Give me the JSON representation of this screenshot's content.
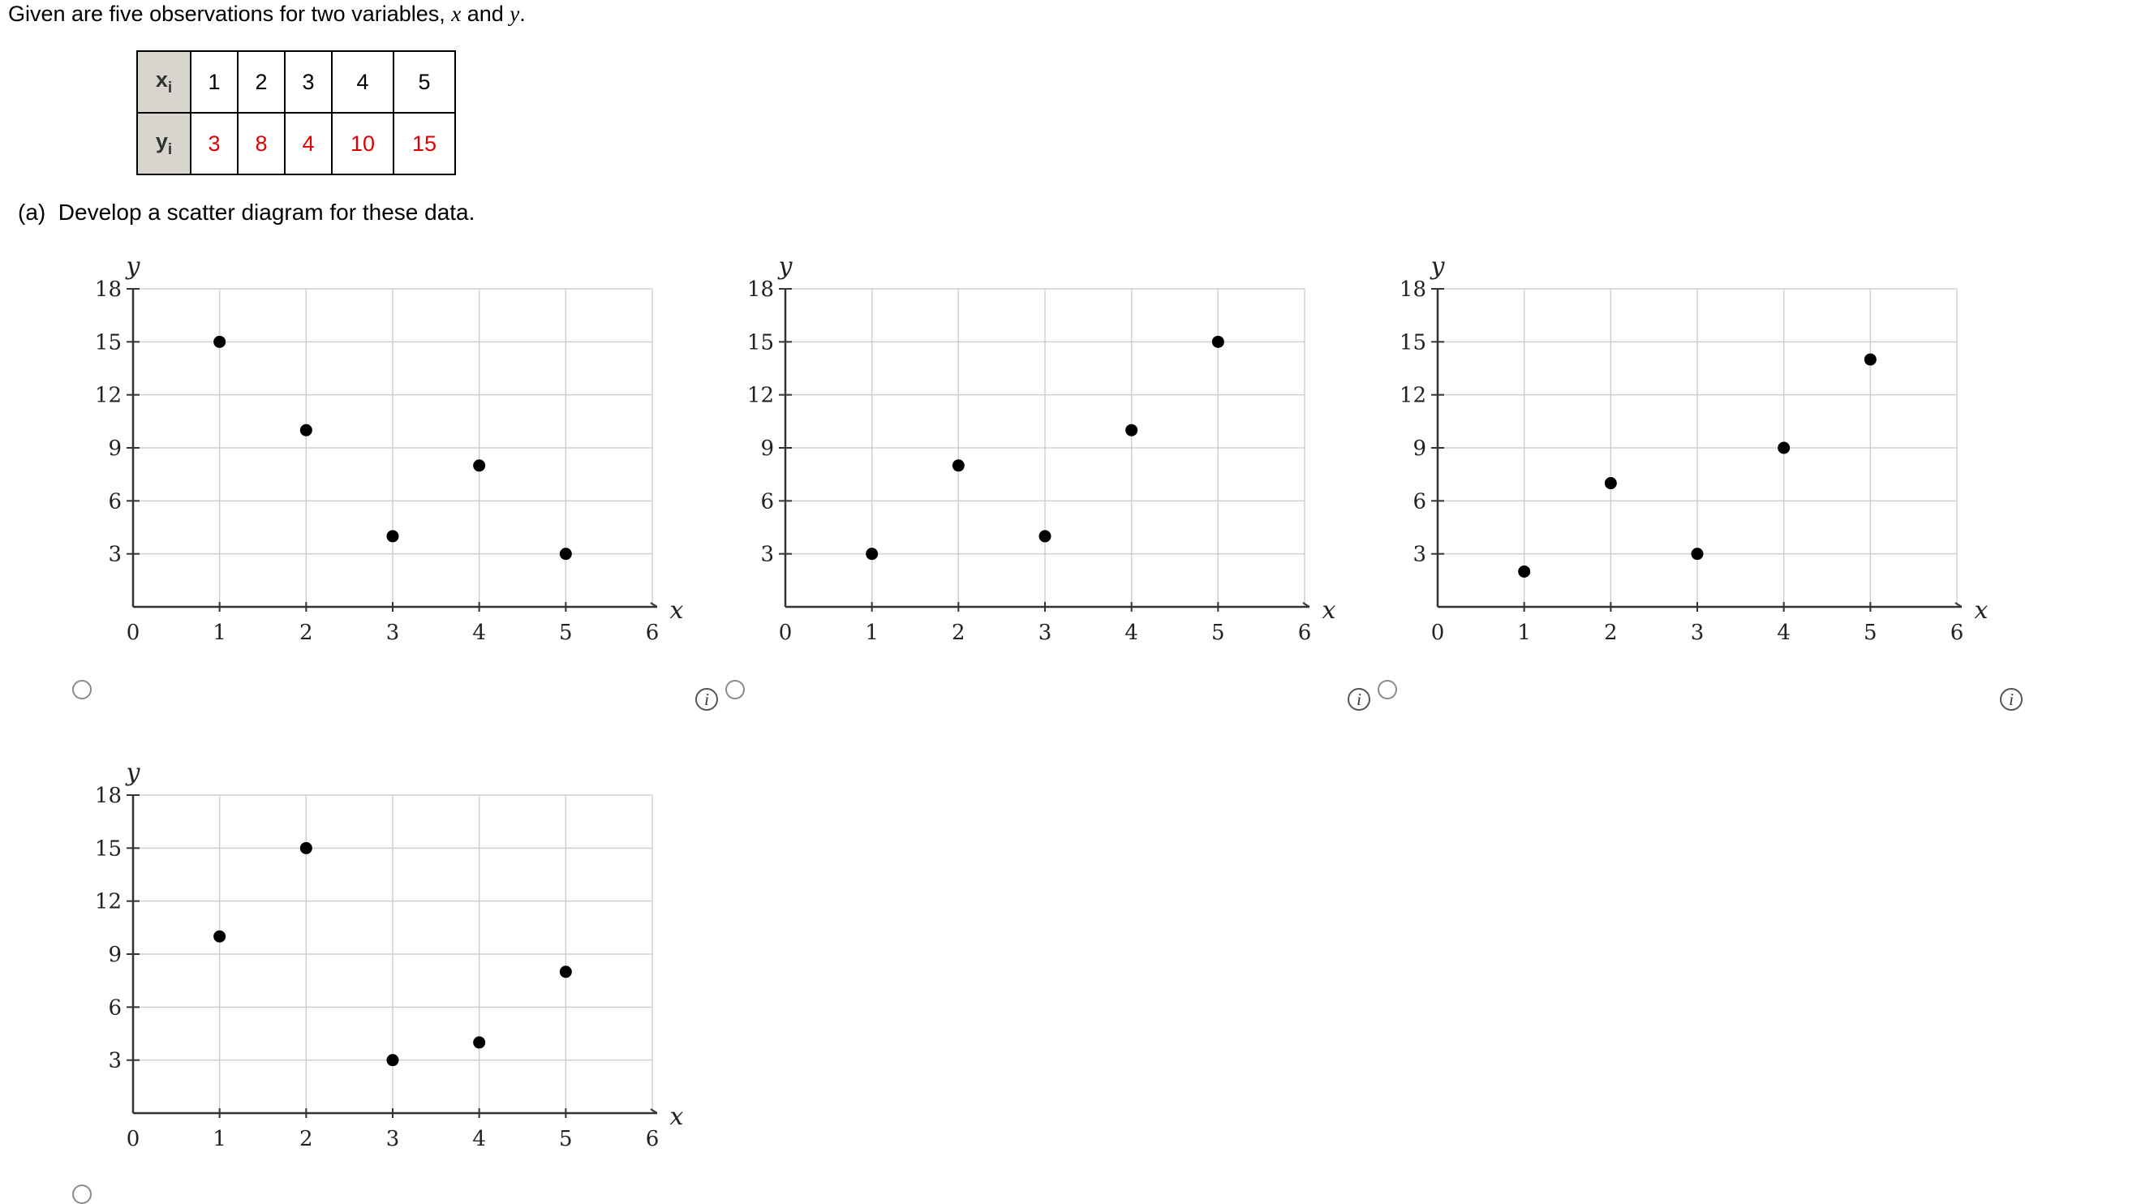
{
  "intro": {
    "prefix": "Given are five observations for two variables, ",
    "var_x": "x",
    "middle": " and ",
    "var_y": "y",
    "suffix": "."
  },
  "table": {
    "x_header": "x",
    "y_header": "y",
    "sub": "i",
    "x_values": [
      "1",
      "2",
      "3",
      "4",
      "5"
    ],
    "y_values": [
      "3",
      "8",
      "4",
      "10",
      "15"
    ],
    "x_color": "#000000",
    "y_color": "#e00000"
  },
  "question": {
    "label": "(a)",
    "text": "Develop a scatter diagram for these data."
  },
  "chart_data": [
    {
      "type": "scatter",
      "option": 1,
      "xlabel": "x",
      "ylabel": "y",
      "xlim": [
        0,
        6
      ],
      "ylim": [
        0,
        18
      ],
      "xticks": [
        "0",
        "1",
        "2",
        "3",
        "4",
        "5",
        "6"
      ],
      "yticks": [
        "3",
        "6",
        "9",
        "12",
        "15",
        "18"
      ],
      "grid": true,
      "points": [
        [
          1,
          15
        ],
        [
          2,
          10
        ],
        [
          3,
          4
        ],
        [
          4,
          8
        ],
        [
          5,
          3
        ]
      ]
    },
    {
      "type": "scatter",
      "option": 2,
      "xlabel": "x",
      "ylabel": "y",
      "xlim": [
        0,
        6
      ],
      "ylim": [
        0,
        18
      ],
      "xticks": [
        "0",
        "1",
        "2",
        "3",
        "4",
        "5",
        "6"
      ],
      "yticks": [
        "3",
        "6",
        "9",
        "12",
        "15",
        "18"
      ],
      "grid": true,
      "points": [
        [
          1,
          3
        ],
        [
          2,
          8
        ],
        [
          3,
          4
        ],
        [
          4,
          10
        ],
        [
          5,
          15
        ]
      ]
    },
    {
      "type": "scatter",
      "option": 3,
      "xlabel": "x",
      "ylabel": "y",
      "xlim": [
        0,
        6
      ],
      "ylim": [
        0,
        18
      ],
      "xticks": [
        "0",
        "1",
        "2",
        "3",
        "4",
        "5",
        "6"
      ],
      "yticks": [
        "3",
        "6",
        "9",
        "12",
        "15",
        "18"
      ],
      "grid": true,
      "points": [
        [
          1,
          2
        ],
        [
          2,
          7
        ],
        [
          3,
          3
        ],
        [
          4,
          9
        ],
        [
          5,
          14
        ]
      ]
    },
    {
      "type": "scatter",
      "option": 4,
      "xlabel": "x",
      "ylabel": "y",
      "xlim": [
        0,
        6
      ],
      "ylim": [
        0,
        18
      ],
      "xticks": [
        "0",
        "1",
        "2",
        "3",
        "4",
        "5",
        "6"
      ],
      "yticks": [
        "3",
        "6",
        "9",
        "12",
        "15",
        "18"
      ],
      "grid": true,
      "points": [
        [
          1,
          10
        ],
        [
          2,
          15
        ],
        [
          3,
          3
        ],
        [
          4,
          4
        ],
        [
          5,
          8
        ]
      ]
    }
  ],
  "info_label": "i",
  "colors": {
    "grid": "#d0d0d0",
    "axis": "#333333",
    "point": "#000000",
    "radio_border": "#8a8a8a"
  }
}
